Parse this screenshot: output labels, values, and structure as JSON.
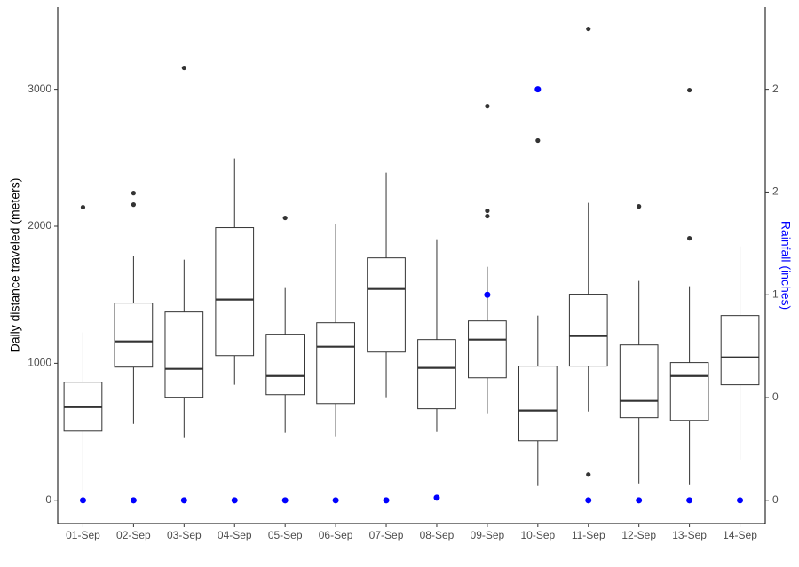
{
  "chart_data": {
    "type": "box",
    "y_label": "Daily distance traveled (meters)",
    "y2_label": "Rainfall (inches)",
    "categories": [
      "01-Sep",
      "02-Sep",
      "03-Sep",
      "04-Sep",
      "05-Sep",
      "06-Sep",
      "07-Sep",
      "08-Sep",
      "09-Sep",
      "10-Sep",
      "11-Sep",
      "12-Sep",
      "13-Sep",
      "14-Sep"
    ],
    "boxes": [
      {
        "low": 71,
        "q1": 505,
        "median": 680,
        "q3": 862,
        "high": 1225,
        "outliers": [
          2139
        ]
      },
      {
        "low": 557,
        "q1": 972,
        "median": 1160,
        "q3": 1439,
        "high": 1782,
        "outliers": [
          2158,
          2242
        ]
      },
      {
        "low": 454,
        "q1": 752,
        "median": 959,
        "q3": 1374,
        "high": 1756,
        "outliers": [
          3156
        ]
      },
      {
        "low": 843,
        "q1": 1056,
        "median": 1465,
        "q3": 1990,
        "high": 2495,
        "outliers": []
      },
      {
        "low": 493,
        "q1": 771,
        "median": 907,
        "q3": 1212,
        "high": 1549,
        "outliers": [
          2061
        ]
      },
      {
        "low": 467,
        "q1": 706,
        "median": 1121,
        "q3": 1296,
        "high": 2016,
        "outliers": []
      },
      {
        "low": 752,
        "q1": 1082,
        "median": 1542,
        "q3": 1769,
        "high": 2391,
        "outliers": []
      },
      {
        "low": 499,
        "q1": 668,
        "median": 966,
        "q3": 1173,
        "high": 1905,
        "outliers": []
      },
      {
        "low": 629,
        "q1": 894,
        "median": 1173,
        "q3": 1309,
        "high": 1704,
        "outliers": [
          2074,
          2113,
          2877
        ]
      },
      {
        "low": 104,
        "q1": 434,
        "median": 655,
        "q3": 979,
        "high": 1348,
        "outliers": [
          2625
        ]
      },
      {
        "low": 648,
        "q1": 979,
        "median": 1199,
        "q3": 1504,
        "high": 2171,
        "outliers": [
          188,
          3441
        ]
      },
      {
        "low": 123,
        "q1": 603,
        "median": 726,
        "q3": 1134,
        "high": 1601,
        "outliers": [
          2145
        ]
      },
      {
        "low": 110,
        "q1": 583,
        "median": 907,
        "q3": 1005,
        "high": 1562,
        "outliers": [
          1912,
          2994
        ]
      },
      {
        "low": 298,
        "q1": 843,
        "median": 1043,
        "q3": 1348,
        "high": 1853,
        "outliers": []
      }
    ],
    "box_color": "#333333",
    "series": [
      {
        "axis": "y2",
        "color": "#0000ff",
        "values": [
          0,
          0,
          0,
          0,
          0,
          0,
          0,
          0.013,
          1,
          2,
          0,
          0,
          0,
          0
        ]
      }
    ],
    "ylim": [
      -170,
      3600
    ],
    "yticks": [
      0,
      1000,
      2000,
      3000
    ],
    "y2lim": [
      -0.113,
      2.4
    ],
    "y2ticks": [
      0,
      {
        "value": 0.5,
        "label": "0"
      },
      1,
      {
        "value": 1.5,
        "label": "2"
      },
      2
    ],
    "grid": false
  }
}
